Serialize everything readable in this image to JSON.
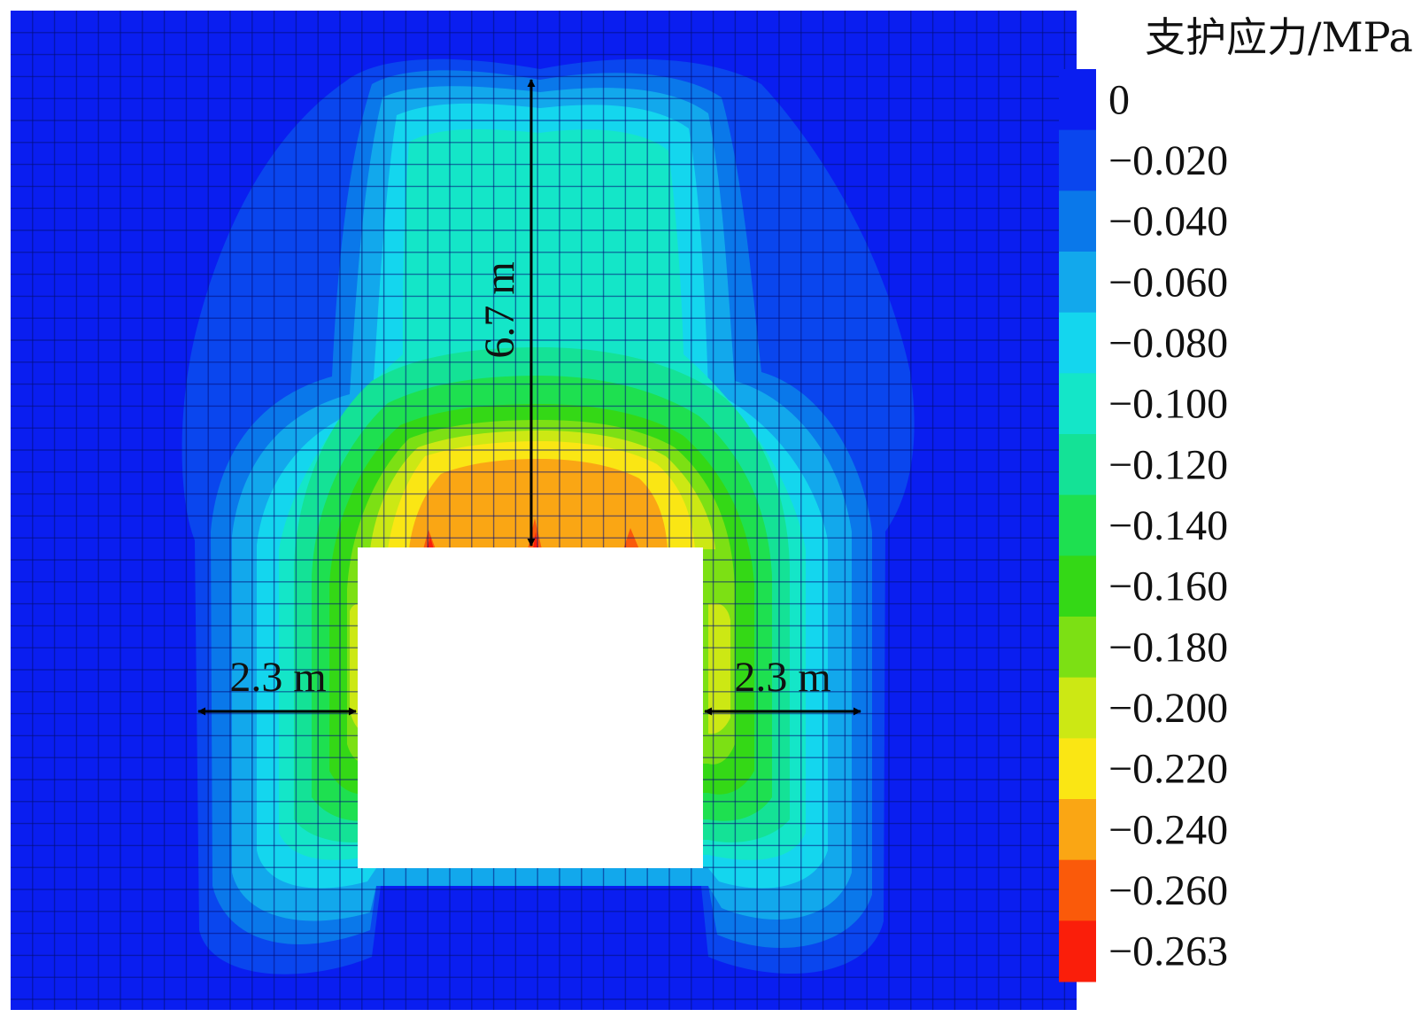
{
  "annotations": {
    "height_label": "6.7 m",
    "left_width_label": "2.3 m",
    "right_width_label": "2.3 m"
  },
  "legend": {
    "title": "支护应力/MPa",
    "bands": [
      {
        "label": "0",
        "color": "#0a1ef0"
      },
      {
        "label": "−0.020",
        "color": "#0a46ee"
      },
      {
        "label": "−0.040",
        "color": "#0a78ea"
      },
      {
        "label": "−0.060",
        "color": "#12a8ec"
      },
      {
        "label": "−0.080",
        "color": "#14d6ee"
      },
      {
        "label": "−0.100",
        "color": "#14e6c8"
      },
      {
        "label": "−0.120",
        "color": "#14e296"
      },
      {
        "label": "−0.140",
        "color": "#1ee050"
      },
      {
        "label": "−0.160",
        "color": "#34d816"
      },
      {
        "label": "−0.180",
        "color": "#7ce014"
      },
      {
        "label": "−0.200",
        "color": "#cce814"
      },
      {
        "label": "−0.220",
        "color": "#fae614"
      },
      {
        "label": "−0.240",
        "color": "#faa614"
      },
      {
        "label": "−0.260",
        "color": "#fa5a0a"
      },
      {
        "label": "−0.263",
        "color": "#fa1e0a"
      }
    ]
  },
  "colors": {
    "background": "#0a1ef0",
    "opening": "#ffffff",
    "mesh": "#04107a"
  }
}
